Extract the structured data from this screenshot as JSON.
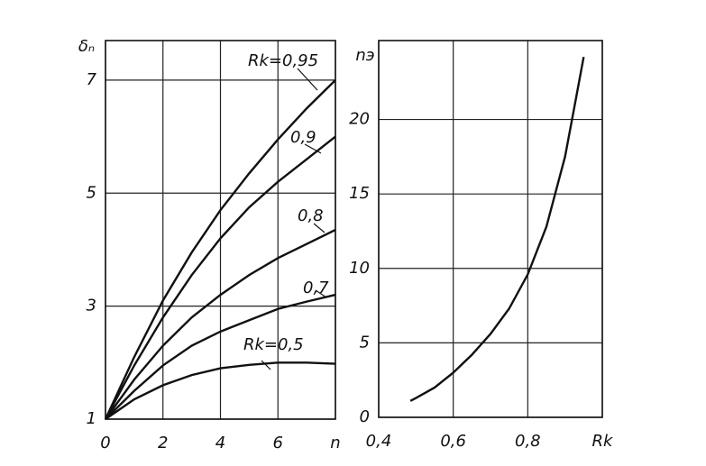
{
  "chart_data": [
    {
      "type": "line",
      "ylabel": "δₙ",
      "x": [
        0,
        1,
        2,
        3,
        4,
        5,
        6,
        7,
        8
      ],
      "series": [
        {
          "name": "Rk=0,95",
          "color": "#111111",
          "values": [
            1,
            2.1,
            3.1,
            3.95,
            4.7,
            5.35,
            5.95,
            6.5,
            7.0
          ]
        },
        {
          "name": "0,9",
          "color": "#111111",
          "values": [
            1,
            1.95,
            2.8,
            3.55,
            4.2,
            4.75,
            5.2,
            5.6,
            6.0
          ]
        },
        {
          "name": "0,8",
          "color": "#111111",
          "values": [
            1,
            1.7,
            2.3,
            2.8,
            3.2,
            3.55,
            3.85,
            4.1,
            4.35
          ]
        },
        {
          "name": "0,7",
          "color": "#111111",
          "values": [
            1,
            1.5,
            1.95,
            2.3,
            2.55,
            2.75,
            2.95,
            3.08,
            3.2
          ]
        },
        {
          "name": "Rk=0,5",
          "color": "#111111",
          "values": [
            1,
            1.35,
            1.6,
            1.78,
            1.9,
            1.96,
            2.0,
            2.0,
            1.98
          ]
        }
      ],
      "xlim": [
        0,
        8
      ],
      "xticks": [
        0,
        2,
        4,
        6,
        {
          "value": 8,
          "label": "n"
        }
      ],
      "ylim": [
        1,
        7.7
      ],
      "yticks": [
        1,
        3,
        5,
        7
      ],
      "grid": true
    },
    {
      "type": "line",
      "ylabel": "nэ",
      "x": [
        0.485,
        0.5,
        0.55,
        0.6,
        0.65,
        0.7,
        0.75,
        0.8,
        0.85,
        0.9,
        0.93,
        0.95
      ],
      "series": [
        {
          "color": "#111111",
          "values": [
            1.1,
            1.3,
            2.0,
            3.0,
            4.2,
            5.6,
            7.3,
            9.6,
            12.8,
            17.5,
            21.5,
            24.2
          ]
        }
      ],
      "xlim": [
        0.4,
        1.0
      ],
      "xticks": [
        {
          "value": 0.4,
          "label": "0,4"
        },
        {
          "value": 0.6,
          "label": "0,6"
        },
        {
          "value": 0.8,
          "label": "0,8"
        },
        {
          "value": 1.0,
          "label": "Rk"
        }
      ],
      "ylim": [
        0,
        25.3
      ],
      "yticks": [
        0,
        5,
        10,
        15,
        20
      ],
      "grid": true
    }
  ]
}
